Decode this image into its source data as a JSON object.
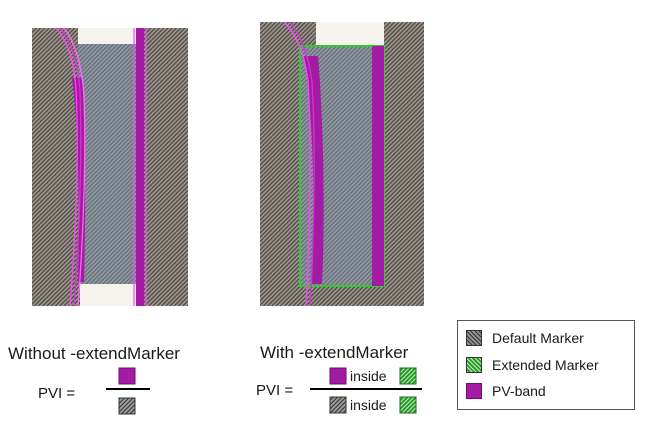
{
  "panels": {
    "left_caption": "Without -extendMarker",
    "right_caption": "With -extendMarker"
  },
  "formula_left": {
    "label": "PVI ="
  },
  "formula_right": {
    "label": "PVI =",
    "numerator_word": "inside",
    "denominator_word": "inside"
  },
  "legend": {
    "items": [
      {
        "label": "Default Marker",
        "swatch": "default"
      },
      {
        "label": "Extended Marker",
        "swatch": "extended"
      },
      {
        "label": "PV-band",
        "swatch": "pvband"
      }
    ]
  },
  "colors": {
    "pv_band": "#a31aa3",
    "pv_contour": "#ff44ff",
    "extended_marker": "#32c832",
    "default_marker": "#8c8c8c"
  }
}
